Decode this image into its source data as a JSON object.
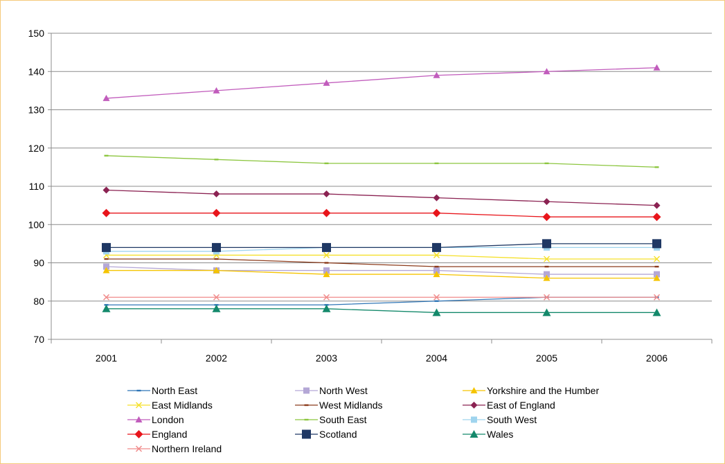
{
  "chart_data": {
    "type": "line",
    "title": "",
    "xlabel": "",
    "ylabel": "",
    "categories": [
      "2001",
      "2002",
      "2003",
      "2004",
      "2005",
      "2006"
    ],
    "ylim": [
      70,
      150
    ],
    "yticks": [
      70,
      80,
      90,
      100,
      110,
      120,
      130,
      140,
      150
    ],
    "grid": "horizontal",
    "legend_position": "bottom",
    "series": [
      {
        "name": "North East",
        "color": "#2e75b6",
        "marker": "dash",
        "values": [
          79,
          79,
          79,
          80,
          81,
          81
        ]
      },
      {
        "name": "North West",
        "color": "#b4a7d6",
        "marker": "square",
        "values": [
          89,
          88,
          88,
          88,
          87,
          87
        ]
      },
      {
        "name": "Yorkshire and the Humber",
        "color": "#f5c400",
        "marker": "triangle",
        "values": [
          88,
          88,
          87,
          87,
          86,
          86
        ]
      },
      {
        "name": "East Midlands",
        "color": "#f5e02a",
        "marker": "x",
        "values": [
          92,
          92,
          92,
          92,
          91,
          91
        ]
      },
      {
        "name": "West Midlands",
        "color": "#8b3a1a",
        "marker": "dash",
        "values": [
          91,
          91,
          90,
          89,
          89,
          89
        ]
      },
      {
        "name": "East of England",
        "color": "#8b2252",
        "marker": "diamond",
        "values": [
          109,
          108,
          108,
          107,
          106,
          105
        ]
      },
      {
        "name": "London",
        "color": "#c15cbc",
        "marker": "triangle",
        "values": [
          133,
          135,
          137,
          139,
          140,
          141
        ]
      },
      {
        "name": "South East",
        "color": "#8cc63f",
        "marker": "dash",
        "values": [
          118,
          117,
          116,
          116,
          116,
          115
        ]
      },
      {
        "name": "South West",
        "color": "#9fd4ee",
        "marker": "square",
        "values": [
          93,
          93,
          94,
          94,
          94,
          94
        ]
      },
      {
        "name": "England",
        "color": "#e8151b",
        "marker": "diamond",
        "values": [
          103,
          103,
          103,
          103,
          102,
          102
        ]
      },
      {
        "name": "Scotland",
        "color": "#1f3864",
        "marker": "square",
        "values": [
          94,
          94,
          94,
          94,
          95,
          95
        ]
      },
      {
        "name": "Wales",
        "color": "#14896b",
        "marker": "triangle",
        "values": [
          78,
          78,
          78,
          77,
          77,
          77
        ]
      },
      {
        "name": "Northern Ireland",
        "color": "#f08a8a",
        "marker": "x",
        "values": [
          81,
          81,
          81,
          81,
          81,
          81
        ]
      }
    ]
  }
}
